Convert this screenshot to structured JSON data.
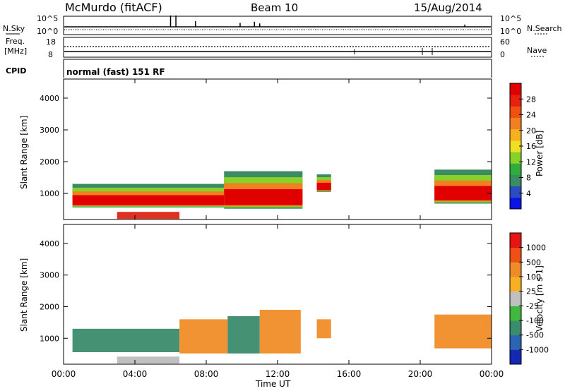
{
  "header": {
    "station": "McMurdo (fitACF)",
    "beam": "Beam 10",
    "date": "15/Aug/2014"
  },
  "top_panels": {
    "noise": {
      "left_label": "N.Sky",
      "right_label": "N.Search",
      "y_ticks_left": [
        "10^5",
        "10^0"
      ],
      "y_ticks_right": [
        "10^5",
        "10^0"
      ],
      "spikes": [
        {
          "t": 6.0,
          "h": 1.0
        },
        {
          "t": 6.3,
          "h": 1.0
        },
        {
          "t": 7.4,
          "h": 0.5
        },
        {
          "t": 9.9,
          "h": 0.35
        },
        {
          "t": 10.7,
          "h": 0.45
        },
        {
          "t": 11.0,
          "h": 0.3
        },
        {
          "t": 22.5,
          "h": 0.2
        }
      ]
    },
    "freq": {
      "left_label_top": "Freq.",
      "left_label_unit": "[MHz]",
      "right_label": "Nave",
      "y_ticks_left": [
        "18",
        "8"
      ],
      "y_ticks_right": [
        "60",
        "0"
      ]
    },
    "cpid": {
      "label": "CPID",
      "text": "normal (fast) 151 RF"
    }
  },
  "chart_data": [
    {
      "type": "heatmap",
      "title": "Power",
      "xlabel": "",
      "ylabel": "Slant Range [km]",
      "xlim": [
        0,
        24
      ],
      "ylim": [
        180,
        4600
      ],
      "y_ticks": [
        1000,
        2000,
        3000,
        4000
      ],
      "colorbar": {
        "label": "Power [dB]",
        "ticks": [
          "4",
          "8",
          "12",
          "16",
          "20",
          "24",
          "28"
        ],
        "colors": [
          "#0a14e8",
          "#2a4cc0",
          "#3a8c64",
          "#2fae3c",
          "#88d02a",
          "#f0e020",
          "#f8b020",
          "#f08020",
          "#f05010",
          "#e82010",
          "#e00000"
        ]
      },
      "echo_bands": [
        {
          "t0": 0.5,
          "t1": 9.0,
          "low": 560,
          "high": 1300
        },
        {
          "t0": 9.0,
          "t1": 13.4,
          "low": 520,
          "high": 1700
        },
        {
          "t0": 14.2,
          "t1": 15.0,
          "low": 1050,
          "high": 1600
        },
        {
          "t0": 20.8,
          "t1": 24.0,
          "low": 680,
          "high": 1750
        }
      ]
    },
    {
      "type": "heatmap",
      "title": "Velocity",
      "xlabel": "Time UT",
      "ylabel": "Slant Range [km]",
      "xlim": [
        0,
        24
      ],
      "ylim": [
        180,
        4600
      ],
      "x_ticks": [
        "00:00",
        "04:00",
        "08:00",
        "12:00",
        "16:00",
        "20:00",
        "00:00"
      ],
      "y_ticks": [
        1000,
        2000,
        3000,
        4000
      ],
      "colorbar": {
        "label": "Velocity [m s-1]",
        "ticks": [
          "1000",
          "500",
          "100",
          "25",
          "-25",
          "-100",
          "-500",
          "-1000"
        ],
        "colors": [
          "#1428b4",
          "#2c64b4",
          "#3a8c6c",
          "#40b840",
          "#c0c0c0",
          "#f8b020",
          "#f08c28",
          "#f05014",
          "#e81414"
        ]
      },
      "echo_bands": [
        {
          "t0": 0.5,
          "t1": 6.5,
          "low": 560,
          "high": 1300,
          "color": "#3a8c6c"
        },
        {
          "t0": 6.5,
          "t1": 9.2,
          "low": 520,
          "high": 1600,
          "color": "#f08c28"
        },
        {
          "t0": 9.2,
          "t1": 11.0,
          "low": 520,
          "high": 1700,
          "color": "#3a8c6c"
        },
        {
          "t0": 11.0,
          "t1": 13.3,
          "low": 520,
          "high": 1900,
          "color": "#f08c28"
        },
        {
          "t0": 14.2,
          "t1": 15.0,
          "low": 1000,
          "high": 1600,
          "color": "#f08c28"
        },
        {
          "t0": 20.8,
          "t1": 24.0,
          "low": 680,
          "high": 1750,
          "color": "#f08c28"
        }
      ]
    }
  ]
}
